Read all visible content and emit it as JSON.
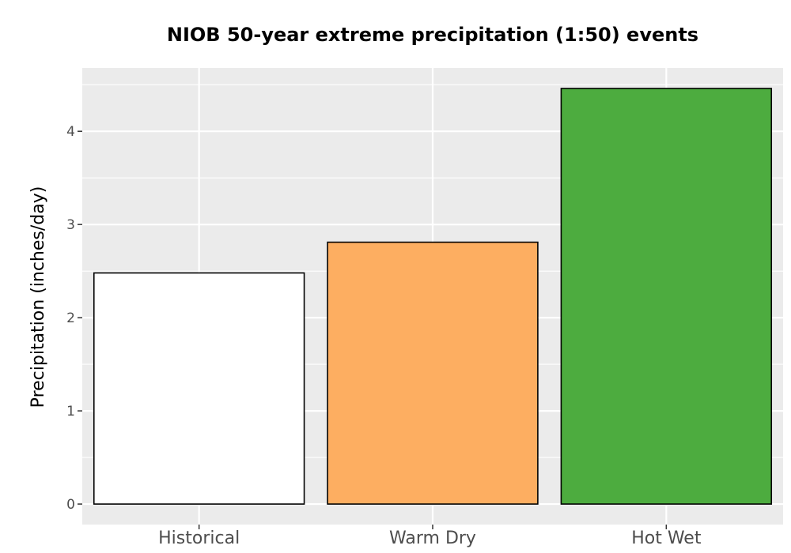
{
  "chart_data": {
    "type": "bar",
    "title": "NIOB 50-year extreme precipitation (1:50) events",
    "xlabel": "",
    "ylabel": "Precipitation (inches/day)",
    "categories": [
      "Historical",
      "Warm Dry",
      "Hot Wet"
    ],
    "values": [
      2.48,
      2.81,
      4.46
    ],
    "bar_colors": [
      "#ffffff",
      "#fdae61",
      "#4dac3f"
    ],
    "ylim": [
      -0.22,
      4.68
    ],
    "yticks": [
      0,
      1,
      2,
      3,
      4
    ],
    "grid": true,
    "legend": "none"
  },
  "colors": {
    "panel": "#ebebeb",
    "grid": "#ffffff",
    "bar_outline": "#000000",
    "tick_text": "#4d4d4d"
  }
}
